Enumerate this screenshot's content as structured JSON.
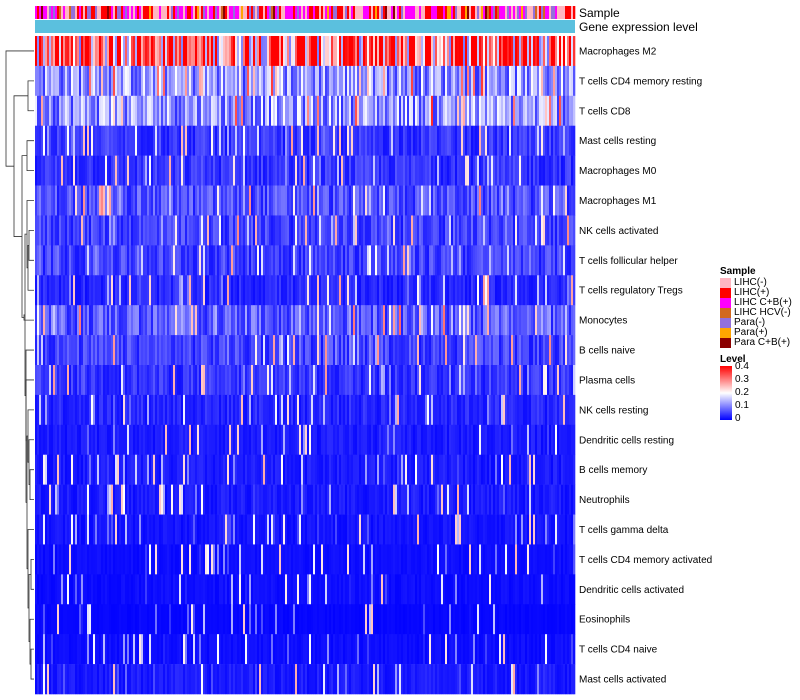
{
  "chart_data": {
    "type": "heatmap",
    "title": "",
    "annotations": {
      "sample_label": "Sample",
      "level_label": "Gene expression level"
    },
    "rows": [
      {
        "name": "Macrophages M2",
        "mean": 0.3
      },
      {
        "name": "T cells CD4 memory resting",
        "mean": 0.12
      },
      {
        "name": "T cells CD8",
        "mean": 0.12
      },
      {
        "name": "Mast cells resting",
        "mean": 0.04
      },
      {
        "name": "Macrophages M0",
        "mean": 0.04
      },
      {
        "name": "Macrophages M1",
        "mean": 0.06
      },
      {
        "name": "NK cells activated",
        "mean": 0.05
      },
      {
        "name": "T cells follicular helper",
        "mean": 0.05
      },
      {
        "name": "T cells regulatory  Tregs",
        "mean": 0.03
      },
      {
        "name": "Monocytes",
        "mean": 0.07
      },
      {
        "name": "B cells naive",
        "mean": 0.05
      },
      {
        "name": "Plasma cells",
        "mean": 0.04
      },
      {
        "name": "NK cells resting",
        "mean": 0.03
      },
      {
        "name": "Dendritic cells resting",
        "mean": 0.02
      },
      {
        "name": "B cells memory",
        "mean": 0.02
      },
      {
        "name": "Neutrophils",
        "mean": 0.02
      },
      {
        "name": "T cells gamma delta",
        "mean": 0.015
      },
      {
        "name": "T cells CD4 memory activated",
        "mean": 0.01
      },
      {
        "name": "Dendritic cells activated",
        "mean": 0.01
      },
      {
        "name": "Eosinophils",
        "mean": 0.005
      },
      {
        "name": "T cells CD4 naive",
        "mean": 0.01
      },
      {
        "name": "Mast cells activated",
        "mean": 0.02
      }
    ],
    "legend_sample": {
      "title": "Sample",
      "items": [
        {
          "label": "LIHC(-)",
          "color": "#ffb6c1"
        },
        {
          "label": "LIHC(+)",
          "color": "#ff0000"
        },
        {
          "label": "LIHC C+B(+)",
          "color": "#ff00ff"
        },
        {
          "label": "LIHC HCV(-)",
          "color": "#d2691e"
        },
        {
          "label": "Para(-)",
          "color": "#9370db"
        },
        {
          "label": "Para(+)",
          "color": "#ffa500"
        },
        {
          "label": "Para C+B(+)",
          "color": "#8b0000"
        }
      ]
    },
    "legend_level": {
      "title": "Level",
      "ticks": [
        "0.4",
        "0.3",
        "0.2",
        "0.1",
        "0"
      ],
      "range": [
        0,
        0.4
      ],
      "colors": {
        "low": "#0000ff",
        "mid": "#ffffff",
        "high": "#ff0000"
      }
    },
    "gene_expression_bar_color": "#5bc0de",
    "n_samples": 540
  }
}
